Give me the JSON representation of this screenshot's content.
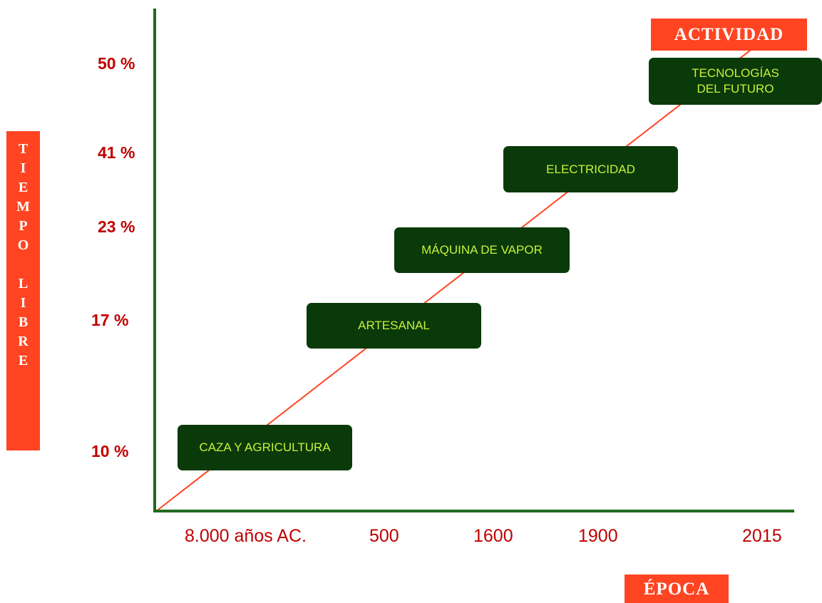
{
  "title_x": "ÉPOCA",
  "title_y": "TIEMPO LIBRE",
  "title_activity": "ACTIVIDAD",
  "y_ticks": [
    "50 %",
    "41 %",
    "23 %",
    "17 %",
    "10 %"
  ],
  "x_ticks": [
    "8.000 años AC.",
    "500",
    "1600",
    "1900",
    "2015"
  ],
  "stages": [
    "CAZA Y AGRICULTURA",
    "ARTESANAL",
    "MÁQUINA DE VAPOR",
    "ELECTRICIDAD",
    "TECNOLOGÍAS\nDEL FUTURO"
  ],
  "colors": {
    "axis": "#1e6b1e",
    "trend_line": "#ff4422",
    "label_bg": "#ff4422",
    "label_text": "#ffffff",
    "tick_text": "#c00000",
    "stage_bg": "#0a3a0a",
    "stage_text": "#c8f238"
  }
}
